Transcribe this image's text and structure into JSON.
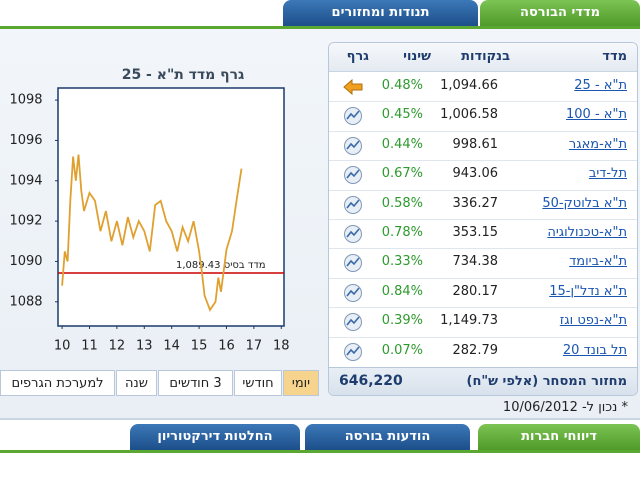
{
  "tabs_top": [
    "מדדי הבורסה",
    "תנודות ומחזורים"
  ],
  "table": {
    "headers": [
      "מדד",
      "בנקודות",
      "שינוי",
      "גרף"
    ],
    "rows": [
      [
        "ת\"א - 25",
        "1,094.66",
        "0.48%"
      ],
      [
        "ת\"א - 100",
        "1,006.58",
        "0.45%"
      ],
      [
        "ת\"א-מאגר",
        "998.61",
        "0.44%"
      ],
      [
        "תל-דיב",
        "943.06",
        "0.67%"
      ],
      [
        "ת\"א בלוטק-50",
        "336.27",
        "0.58%"
      ],
      [
        "ת\"א-טכנולוגיה",
        "353.15",
        "0.78%"
      ],
      [
        "ת\"א-ביומד",
        "734.38",
        "0.33%"
      ],
      [
        "ת\"א נדל\"ן-15",
        "280.17",
        "0.84%"
      ],
      [
        "ת\"א-נפט וגז",
        "1,149.73",
        "0.39%"
      ],
      [
        "תל בונד 20",
        "282.79",
        "0.07%"
      ]
    ],
    "footer": {
      "label": "מחזור המסחר (אלפי ש\"ח)",
      "value": "646,220"
    }
  },
  "as_of": "* נכון ל- 10/06/2012",
  "range_buttons": [
    "יומי",
    "חודשי",
    "3 חודשים",
    "שנה",
    "למערכת הגרפים"
  ],
  "tabs_bottom": [
    "דיווחי חברות",
    "הודעות בורסה",
    "החלטות דירקטוריון"
  ],
  "chart_data": {
    "type": "line",
    "title": "גרף מדד ת\"א - 25",
    "x": [
      10.0,
      10.1,
      10.2,
      10.3,
      10.4,
      10.5,
      10.6,
      10.7,
      10.8,
      11.0,
      11.2,
      11.4,
      11.6,
      11.8,
      12.0,
      12.2,
      12.4,
      12.6,
      12.8,
      13.0,
      13.2,
      13.4,
      13.6,
      13.8,
      14.0,
      14.2,
      14.4,
      14.6,
      14.8,
      15.0,
      15.1,
      15.2,
      15.4,
      15.6,
      15.7,
      15.8,
      16.0,
      16.2,
      16.4,
      16.55
    ],
    "values": [
      1088.8,
      1090.5,
      1090.0,
      1093.0,
      1095.2,
      1094.0,
      1095.3,
      1093.5,
      1092.5,
      1093.4,
      1093.0,
      1091.5,
      1092.5,
      1091.0,
      1092.0,
      1090.8,
      1092.2,
      1091.2,
      1092.0,
      1091.5,
      1090.5,
      1092.8,
      1093.0,
      1092.0,
      1091.5,
      1090.5,
      1091.7,
      1091.0,
      1092.0,
      1090.5,
      1089.5,
      1088.3,
      1087.6,
      1088.0,
      1089.2,
      1088.5,
      1090.6,
      1091.5,
      1093.3,
      1094.6
    ],
    "color": "#e0a030",
    "xlim": [
      9.85,
      18.1
    ],
    "ylim": [
      1086.8,
      1098.6
    ],
    "xticks": [
      10,
      11,
      12,
      13,
      14,
      15,
      16,
      17,
      18
    ],
    "yticks": [
      1088,
      1090,
      1092,
      1094,
      1096,
      1098
    ],
    "base_line": {
      "value": 1089.43,
      "label": "מדד בסיס 1,089.43",
      "color": "#cc0000"
    }
  }
}
